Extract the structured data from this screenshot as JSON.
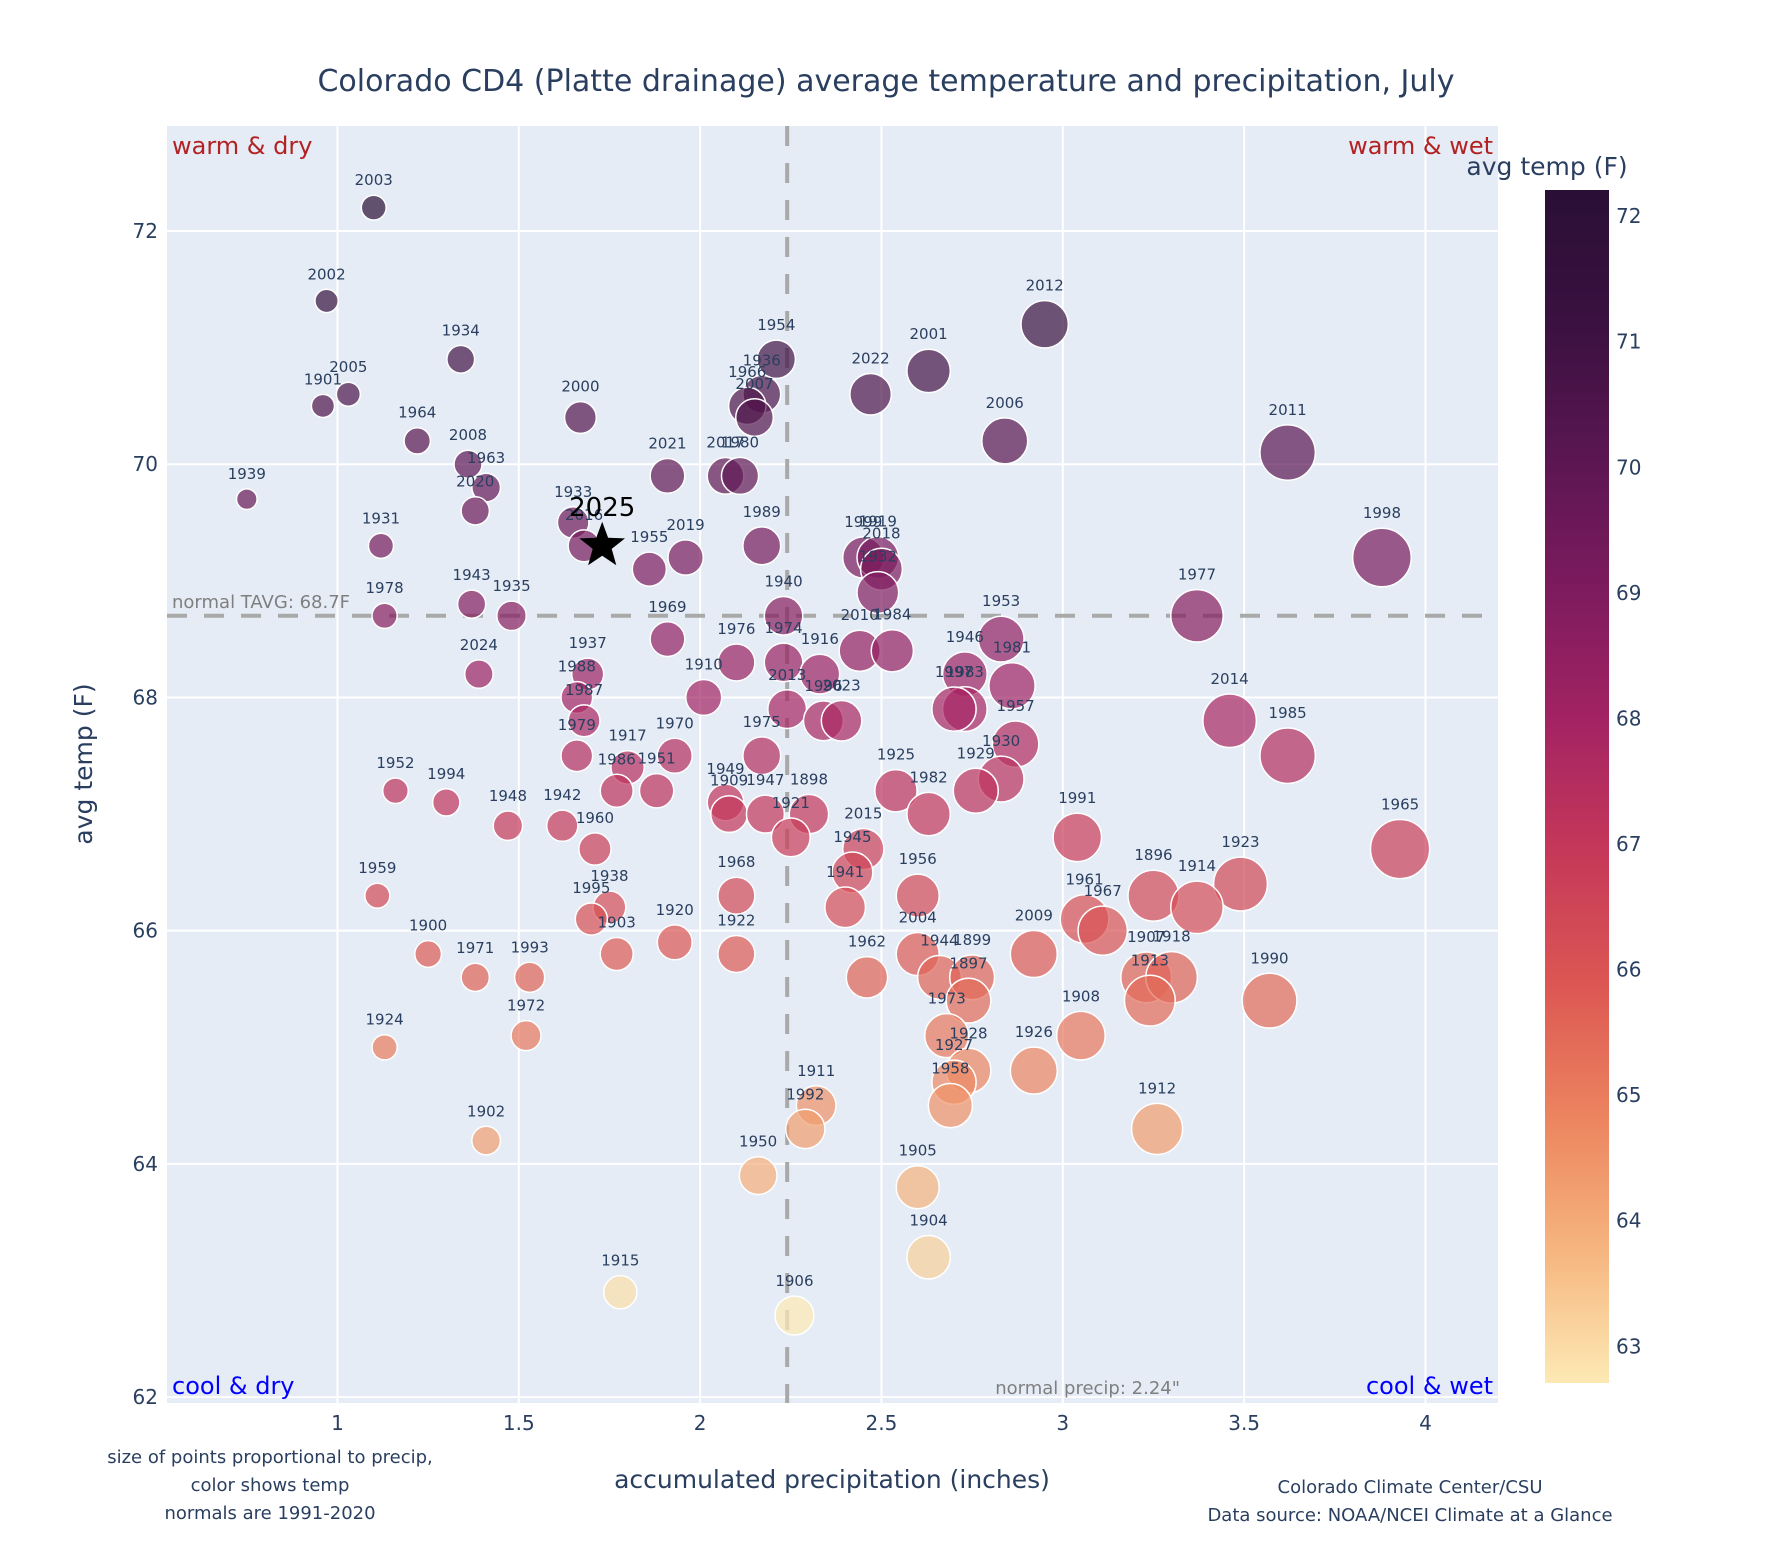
{
  "chart_data": {
    "type": "scatter",
    "title": "Colorado CD4 (Platte drainage) average temperature and precipitation, July",
    "xlabel": "accumulated precipitation (inches)",
    "ylabel": "avg temp (F)",
    "xlim": [
      0.53,
      4.2
    ],
    "ylim": [
      61.95,
      72.9
    ],
    "xticks": [
      1,
      1.5,
      2,
      2.5,
      3,
      3.5,
      4
    ],
    "xtick_labels": [
      "1",
      "1.5",
      "2",
      "2.5",
      "3",
      "3.5",
      "4"
    ],
    "yticks": [
      62,
      64,
      66,
      68,
      70,
      72
    ],
    "ytick_labels": [
      "62",
      "64",
      "66",
      "68",
      "70",
      "72"
    ],
    "grid": true,
    "size_encoding": "precipitation",
    "color_encoding": "avg temp (F)",
    "colorbar": {
      "title": "avg temp (F)",
      "range": [
        62.7,
        72.2
      ],
      "ticks": [
        63,
        64,
        65,
        66,
        67,
        68,
        69,
        70,
        71,
        72
      ],
      "tick_labels": [
        "63",
        "64",
        "65",
        "66",
        "67",
        "68",
        "69",
        "70",
        "71",
        "72"
      ],
      "colorscale": [
        "#fde9b4",
        "#f6b57f",
        "#ec845f",
        "#dc5753",
        "#c63859",
        "#a32363",
        "#7c1b5e",
        "#5a1651",
        "#3a1140",
        "#2a0f35"
      ]
    },
    "reference_lines": {
      "normal_temp": 68.7,
      "normal_temp_label": "normal TAVG: 68.7F",
      "normal_precip": 2.24,
      "normal_precip_label": "normal precip: 2.24\""
    },
    "quadrant_labels": {
      "top_left": "warm & dry",
      "top_right": "warm & wet",
      "bottom_left": "cool & dry",
      "bottom_right": "cool & wet",
      "warm_color": "#b22222",
      "cool_color": "#0000ff"
    },
    "highlight": {
      "year": "2025",
      "precip": 1.73,
      "temp": 69.3,
      "marker": "star"
    },
    "points": [
      {
        "year": "2003",
        "precip": 1.1,
        "temp": 72.2
      },
      {
        "year": "2002",
        "precip": 0.97,
        "temp": 71.4
      },
      {
        "year": "1934",
        "precip": 1.34,
        "temp": 70.9
      },
      {
        "year": "1901",
        "precip": 0.96,
        "temp": 70.5
      },
      {
        "year": "2005",
        "precip": 1.03,
        "temp": 70.6
      },
      {
        "year": "1964",
        "precip": 1.22,
        "temp": 70.2
      },
      {
        "year": "2008",
        "precip": 1.36,
        "temp": 70.0
      },
      {
        "year": "1963",
        "precip": 1.41,
        "temp": 69.8
      },
      {
        "year": "2020",
        "precip": 1.38,
        "temp": 69.6
      },
      {
        "year": "1939",
        "precip": 0.75,
        "temp": 69.7
      },
      {
        "year": "1931",
        "precip": 1.12,
        "temp": 69.3
      },
      {
        "year": "1978",
        "precip": 1.13,
        "temp": 68.7
      },
      {
        "year": "1943",
        "precip": 1.37,
        "temp": 68.8
      },
      {
        "year": "1935",
        "precip": 1.48,
        "temp": 68.7
      },
      {
        "year": "2024",
        "precip": 1.39,
        "temp": 68.2
      },
      {
        "year": "2000",
        "precip": 1.67,
        "temp": 70.4
      },
      {
        "year": "1933",
        "precip": 1.65,
        "temp": 69.5
      },
      {
        "year": "2016",
        "precip": 1.68,
        "temp": 69.3
      },
      {
        "year": "1955",
        "precip": 1.86,
        "temp": 69.1
      },
      {
        "year": "2019",
        "precip": 1.96,
        "temp": 69.2
      },
      {
        "year": "2021",
        "precip": 1.91,
        "temp": 69.9
      },
      {
        "year": "2017",
        "precip": 2.07,
        "temp": 69.9
      },
      {
        "year": "1980",
        "precip": 2.11,
        "temp": 69.9
      },
      {
        "year": "1954",
        "precip": 2.21,
        "temp": 70.9
      },
      {
        "year": "1936",
        "precip": 2.17,
        "temp": 70.6
      },
      {
        "year": "1966",
        "precip": 2.13,
        "temp": 70.5
      },
      {
        "year": "2007",
        "precip": 2.15,
        "temp": 70.4
      },
      {
        "year": "1989",
        "precip": 2.17,
        "temp": 69.3
      },
      {
        "year": "2022",
        "precip": 2.47,
        "temp": 70.6
      },
      {
        "year": "2001",
        "precip": 2.63,
        "temp": 70.8
      },
      {
        "year": "2012",
        "precip": 2.95,
        "temp": 71.2
      },
      {
        "year": "2006",
        "precip": 2.84,
        "temp": 70.2
      },
      {
        "year": "2011",
        "precip": 3.62,
        "temp": 70.1
      },
      {
        "year": "1998",
        "precip": 3.88,
        "temp": 69.2
      },
      {
        "year": "1977",
        "precip": 3.37,
        "temp": 68.7
      },
      {
        "year": "1999",
        "precip": 2.45,
        "temp": 69.2
      },
      {
        "year": "1919",
        "precip": 2.49,
        "temp": 69.2
      },
      {
        "year": "2018",
        "precip": 2.5,
        "temp": 69.1
      },
      {
        "year": "1932",
        "precip": 2.49,
        "temp": 68.9
      },
      {
        "year": "1940",
        "precip": 2.23,
        "temp": 68.7
      },
      {
        "year": "1969",
        "precip": 1.91,
        "temp": 68.5
      },
      {
        "year": "1976",
        "precip": 2.1,
        "temp": 68.3
      },
      {
        "year": "1974",
        "precip": 2.23,
        "temp": 68.3
      },
      {
        "year": "2010",
        "precip": 2.44,
        "temp": 68.4
      },
      {
        "year": "1984",
        "precip": 2.53,
        "temp": 68.4
      },
      {
        "year": "1953",
        "precip": 2.83,
        "temp": 68.5
      },
      {
        "year": "1946",
        "precip": 2.73,
        "temp": 68.2
      },
      {
        "year": "1981",
        "precip": 2.86,
        "temp": 68.1
      },
      {
        "year": "1983",
        "precip": 2.73,
        "temp": 67.9
      },
      {
        "year": "1997",
        "precip": 2.7,
        "temp": 67.9
      },
      {
        "year": "1957",
        "precip": 2.87,
        "temp": 67.6
      },
      {
        "year": "1930",
        "precip": 2.83,
        "temp": 67.3
      },
      {
        "year": "1929",
        "precip": 2.76,
        "temp": 67.2
      },
      {
        "year": "1916",
        "precip": 2.33,
        "temp": 68.2
      },
      {
        "year": "2013",
        "precip": 2.24,
        "temp": 67.9
      },
      {
        "year": "1996",
        "precip": 2.34,
        "temp": 67.8
      },
      {
        "year": "2023",
        "precip": 2.39,
        "temp": 67.8
      },
      {
        "year": "1910",
        "precip": 2.01,
        "temp": 68.0
      },
      {
        "year": "1937",
        "precip": 1.69,
        "temp": 68.2
      },
      {
        "year": "1988",
        "precip": 1.66,
        "temp": 68.0
      },
      {
        "year": "1987",
        "precip": 1.68,
        "temp": 67.8
      },
      {
        "year": "1979",
        "precip": 1.66,
        "temp": 67.5
      },
      {
        "year": "1975",
        "precip": 2.17,
        "temp": 67.5
      },
      {
        "year": "1970",
        "precip": 1.93,
        "temp": 67.5
      },
      {
        "year": "1917",
        "precip": 1.8,
        "temp": 67.4
      },
      {
        "year": "1986",
        "precip": 1.77,
        "temp": 67.2
      },
      {
        "year": "1951",
        "precip": 1.88,
        "temp": 67.2
      },
      {
        "year": "1952",
        "precip": 1.16,
        "temp": 67.2
      },
      {
        "year": "1994",
        "precip": 1.3,
        "temp": 67.1
      },
      {
        "year": "1948",
        "precip": 1.47,
        "temp": 66.9
      },
      {
        "year": "1942",
        "precip": 1.62,
        "temp": 66.9
      },
      {
        "year": "1960",
        "precip": 1.71,
        "temp": 66.7
      },
      {
        "year": "1949",
        "precip": 2.07,
        "temp": 67.1
      },
      {
        "year": "1909",
        "precip": 2.08,
        "temp": 67.0
      },
      {
        "year": "1947",
        "precip": 2.18,
        "temp": 67.0
      },
      {
        "year": "1898",
        "precip": 2.3,
        "temp": 67.0
      },
      {
        "year": "1921",
        "precip": 2.25,
        "temp": 66.8
      },
      {
        "year": "1925",
        "precip": 2.54,
        "temp": 67.2
      },
      {
        "year": "1982",
        "precip": 2.63,
        "temp": 67.0
      },
      {
        "year": "2015",
        "precip": 2.45,
        "temp": 66.7
      },
      {
        "year": "1945",
        "precip": 2.42,
        "temp": 66.5
      },
      {
        "year": "1941",
        "precip": 2.4,
        "temp": 66.2
      },
      {
        "year": "1956",
        "precip": 2.6,
        "temp": 66.3
      },
      {
        "year": "1968",
        "precip": 2.1,
        "temp": 66.3
      },
      {
        "year": "1991",
        "precip": 3.04,
        "temp": 66.8
      },
      {
        "year": "2014",
        "precip": 3.46,
        "temp": 67.8
      },
      {
        "year": "1985",
        "precip": 3.62,
        "temp": 67.5
      },
      {
        "year": "1965",
        "precip": 3.93,
        "temp": 66.7
      },
      {
        "year": "1923",
        "precip": 3.49,
        "temp": 66.4
      },
      {
        "year": "1896",
        "precip": 3.25,
        "temp": 66.3
      },
      {
        "year": "1914",
        "precip": 3.37,
        "temp": 66.2
      },
      {
        "year": "1961",
        "precip": 3.06,
        "temp": 66.1
      },
      {
        "year": "1967",
        "precip": 3.11,
        "temp": 66.0
      },
      {
        "year": "2009",
        "precip": 2.92,
        "temp": 65.8
      },
      {
        "year": "1907",
        "precip": 3.23,
        "temp": 65.6
      },
      {
        "year": "1918",
        "precip": 3.3,
        "temp": 65.6
      },
      {
        "year": "1913",
        "precip": 3.24,
        "temp": 65.4
      },
      {
        "year": "1990",
        "precip": 3.57,
        "temp": 65.4
      },
      {
        "year": "1908",
        "precip": 3.05,
        "temp": 65.1
      },
      {
        "year": "1926",
        "precip": 2.92,
        "temp": 64.8
      },
      {
        "year": "1912",
        "precip": 3.26,
        "temp": 64.3
      },
      {
        "year": "1959",
        "precip": 1.11,
        "temp": 66.3
      },
      {
        "year": "1938",
        "precip": 1.75,
        "temp": 66.2
      },
      {
        "year": "1995",
        "precip": 1.7,
        "temp": 66.1
      },
      {
        "year": "1903",
        "precip": 1.77,
        "temp": 65.8
      },
      {
        "year": "1920",
        "precip": 1.93,
        "temp": 65.9
      },
      {
        "year": "1922",
        "precip": 2.1,
        "temp": 65.8
      },
      {
        "year": "1900",
        "precip": 1.25,
        "temp": 65.8
      },
      {
        "year": "1971",
        "precip": 1.38,
        "temp": 65.6
      },
      {
        "year": "1993",
        "precip": 1.53,
        "temp": 65.6
      },
      {
        "year": "1972",
        "precip": 1.52,
        "temp": 65.1
      },
      {
        "year": "1924",
        "precip": 1.13,
        "temp": 65.0
      },
      {
        "year": "1902",
        "precip": 1.41,
        "temp": 64.2
      },
      {
        "year": "1962",
        "precip": 2.46,
        "temp": 65.6
      },
      {
        "year": "2004",
        "precip": 2.6,
        "temp": 65.8
      },
      {
        "year": "1944",
        "precip": 2.66,
        "temp": 65.6
      },
      {
        "year": "1899",
        "precip": 2.75,
        "temp": 65.6
      },
      {
        "year": "1897",
        "precip": 2.74,
        "temp": 65.4
      },
      {
        "year": "1973",
        "precip": 2.68,
        "temp": 65.1
      },
      {
        "year": "1928",
        "precip": 2.74,
        "temp": 64.8
      },
      {
        "year": "1927",
        "precip": 2.7,
        "temp": 64.7
      },
      {
        "year": "1958",
        "precip": 2.69,
        "temp": 64.5
      },
      {
        "year": "1911",
        "precip": 2.32,
        "temp": 64.5
      },
      {
        "year": "1992",
        "precip": 2.29,
        "temp": 64.3
      },
      {
        "year": "1950",
        "precip": 2.16,
        "temp": 63.9
      },
      {
        "year": "1905",
        "precip": 2.6,
        "temp": 63.8
      },
      {
        "year": "1904",
        "precip": 2.63,
        "temp": 63.2
      },
      {
        "year": "1915",
        "precip": 1.78,
        "temp": 62.9
      },
      {
        "year": "1906",
        "precip": 2.26,
        "temp": 62.7
      }
    ]
  },
  "footnotes": {
    "left": [
      "size of points proportional to precip,",
      "color shows temp",
      "normals are 1991-2020"
    ],
    "right": [
      "Colorado Climate Center/CSU",
      "Data source: NOAA/NCEI Climate at a Glance"
    ]
  }
}
